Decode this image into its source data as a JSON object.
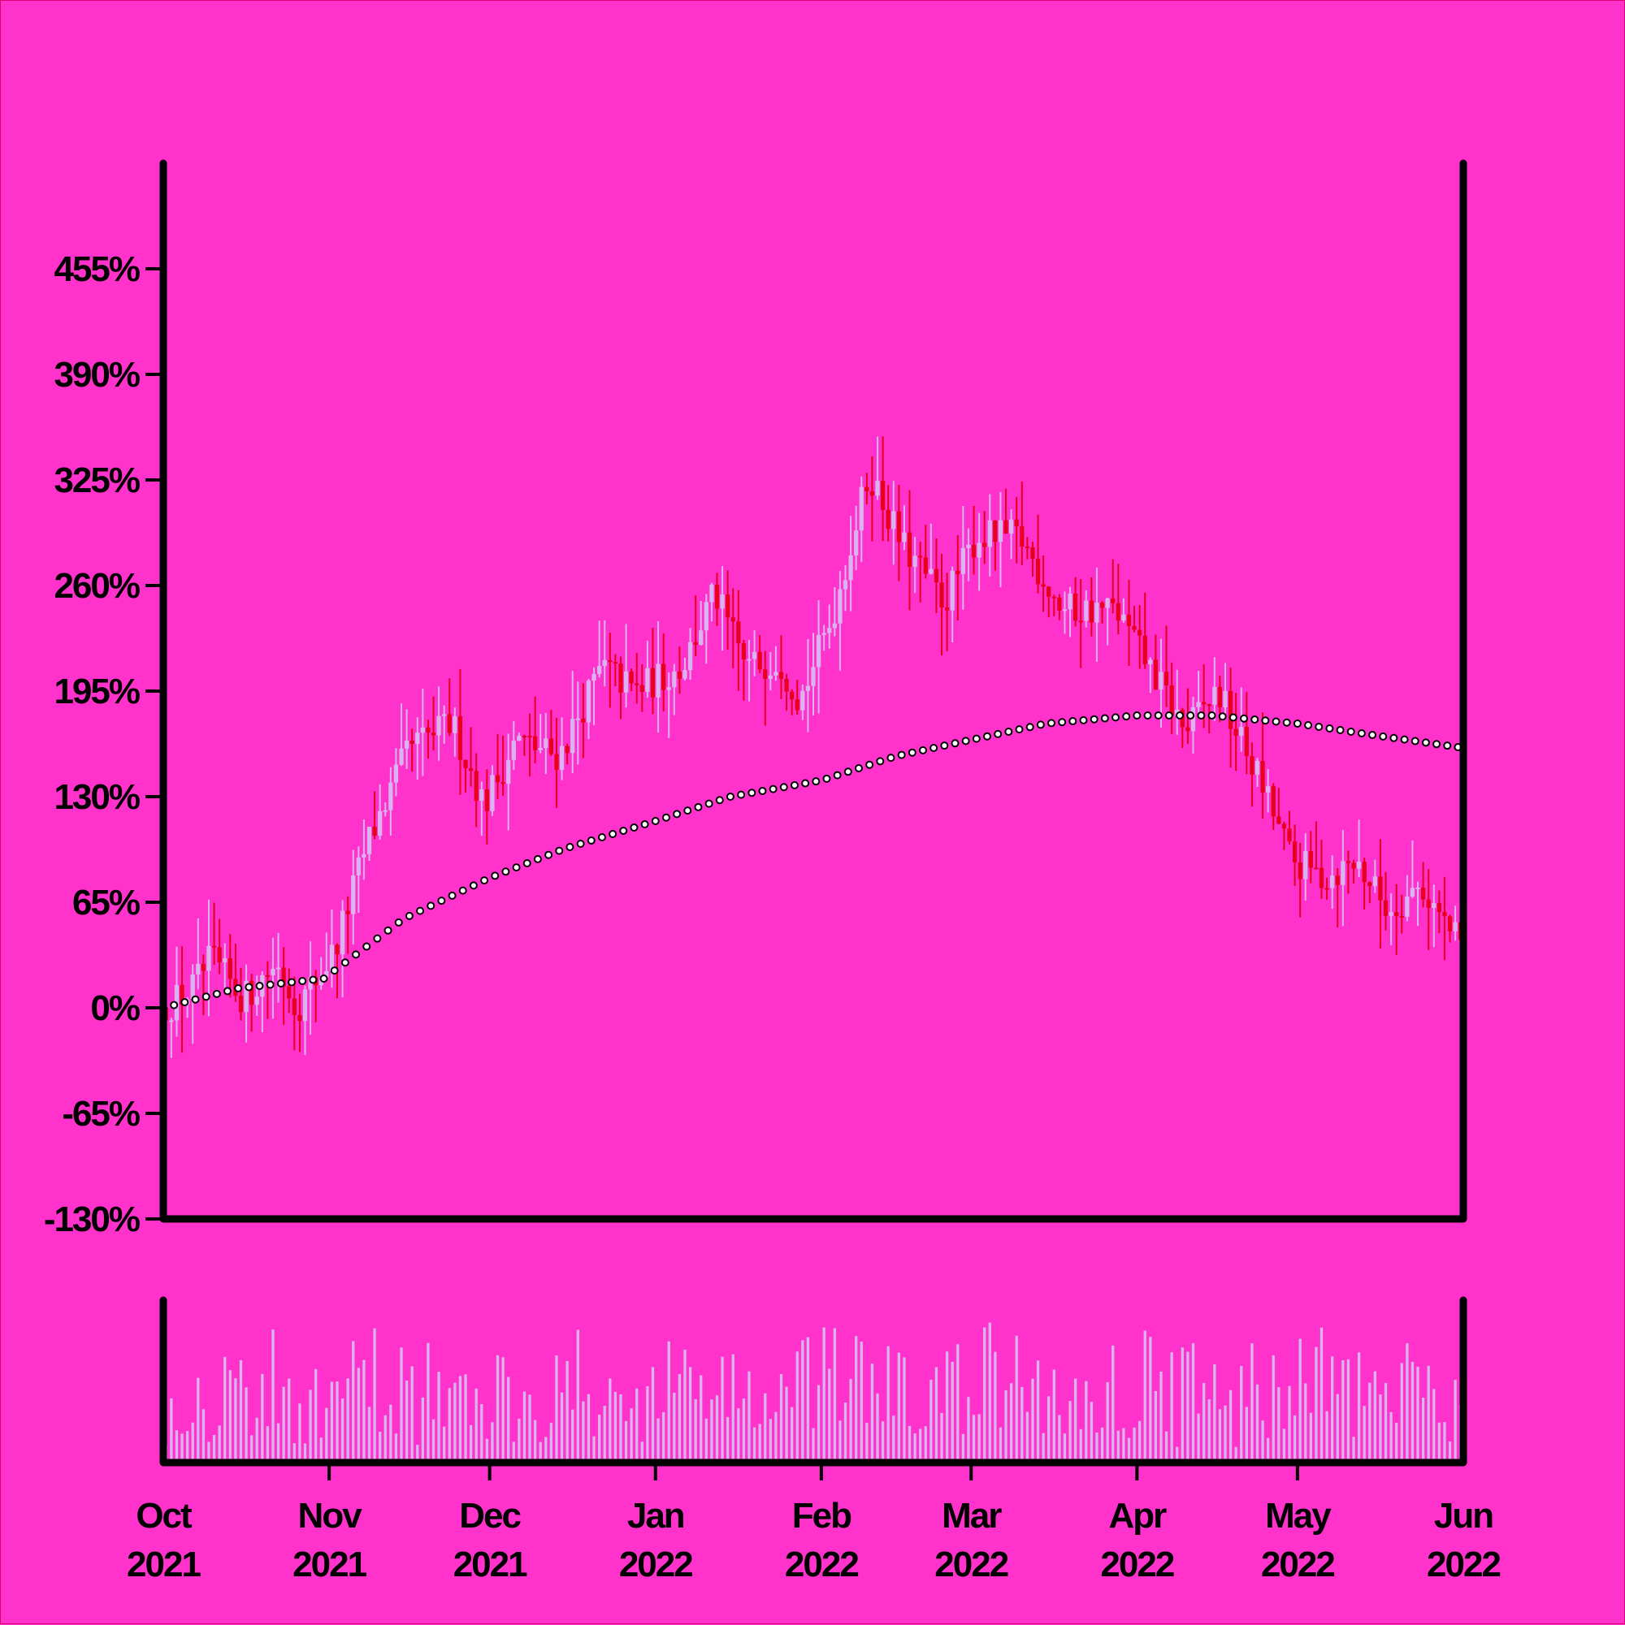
{
  "colors": {
    "background": "#ff33cc",
    "axis": "#000000",
    "up_candle": "#d8b4f0",
    "down_candle": "#e8001c",
    "volume": "#d8b4f0",
    "moving_average_fill": "#ffffff",
    "moving_average_stroke": "#000000"
  },
  "chart_data": {
    "type": "candlestick",
    "y_unit": "percent change",
    "ylim": [
      -130,
      520
    ],
    "y_ticks": [
      -130,
      -65,
      0,
      65,
      130,
      195,
      260,
      325,
      390,
      455
    ],
    "y_tick_labels": [
      "-130%",
      "-65%",
      "0%",
      "65%",
      "130%",
      "195%",
      "260%",
      "325%",
      "390%",
      "455%"
    ],
    "x_range": [
      "2021-10-01",
      "2022-06-01"
    ],
    "x_ticks": [
      "2021-10-01",
      "2021-11-01",
      "2021-12-01",
      "2022-01-01",
      "2022-02-01",
      "2022-03-01",
      "2022-04-01",
      "2022-05-01",
      "2022-06-01"
    ],
    "x_tick_labels": [
      {
        "month": "Oct",
        "year": "2021"
      },
      {
        "month": "Nov",
        "year": "2021"
      },
      {
        "month": "Dec",
        "year": "2021"
      },
      {
        "month": "Jan",
        "year": "2022"
      },
      {
        "month": "Feb",
        "year": "2022"
      },
      {
        "month": "Mar",
        "year": "2022"
      },
      {
        "month": "Apr",
        "year": "2022"
      },
      {
        "month": "May",
        "year": "2022"
      },
      {
        "month": "Jun",
        "year": "2022"
      }
    ],
    "price_series_anchors": [
      {
        "date": "2021-10-01",
        "close": 0
      },
      {
        "date": "2021-10-06",
        "close": 10
      },
      {
        "date": "2021-10-10",
        "close": 30
      },
      {
        "date": "2021-10-16",
        "close": 5
      },
      {
        "date": "2021-10-22",
        "close": 28
      },
      {
        "date": "2021-10-26",
        "close": 0
      },
      {
        "date": "2021-11-02",
        "close": 35
      },
      {
        "date": "2021-11-08",
        "close": 100
      },
      {
        "date": "2021-11-16",
        "close": 160
      },
      {
        "date": "2021-11-24",
        "close": 175
      },
      {
        "date": "2021-11-30",
        "close": 125
      },
      {
        "date": "2021-12-06",
        "close": 165
      },
      {
        "date": "2021-12-14",
        "close": 155
      },
      {
        "date": "2021-12-22",
        "close": 210
      },
      {
        "date": "2021-12-28",
        "close": 195
      },
      {
        "date": "2022-01-06",
        "close": 210
      },
      {
        "date": "2022-01-12",
        "close": 255
      },
      {
        "date": "2022-01-18",
        "close": 210
      },
      {
        "date": "2022-01-24",
        "close": 215
      },
      {
        "date": "2022-01-28",
        "close": 190
      },
      {
        "date": "2022-02-03",
        "close": 240
      },
      {
        "date": "2022-02-10",
        "close": 330
      },
      {
        "date": "2022-02-16",
        "close": 285
      },
      {
        "date": "2022-02-24",
        "close": 250
      },
      {
        "date": "2022-03-02",
        "close": 290
      },
      {
        "date": "2022-03-10",
        "close": 290
      },
      {
        "date": "2022-03-18",
        "close": 245
      },
      {
        "date": "2022-03-28",
        "close": 245
      },
      {
        "date": "2022-04-06",
        "close": 195
      },
      {
        "date": "2022-04-10",
        "close": 170
      },
      {
        "date": "2022-04-16",
        "close": 195
      },
      {
        "date": "2022-04-24",
        "close": 140
      },
      {
        "date": "2022-04-30",
        "close": 90
      },
      {
        "date": "2022-05-06",
        "close": 80
      },
      {
        "date": "2022-05-12",
        "close": 90
      },
      {
        "date": "2022-05-18",
        "close": 60
      },
      {
        "date": "2022-05-24",
        "close": 75
      },
      {
        "date": "2022-05-31",
        "close": 40
      }
    ],
    "moving_average_anchors": [
      {
        "date": "2021-10-01",
        "value": 0
      },
      {
        "date": "2021-10-15",
        "value": 12
      },
      {
        "date": "2021-10-31",
        "value": 18
      },
      {
        "date": "2021-11-15",
        "value": 55
      },
      {
        "date": "2021-12-01",
        "value": 80
      },
      {
        "date": "2021-12-15",
        "value": 98
      },
      {
        "date": "2022-01-01",
        "value": 115
      },
      {
        "date": "2022-01-15",
        "value": 130
      },
      {
        "date": "2022-02-01",
        "value": 140
      },
      {
        "date": "2022-02-15",
        "value": 155
      },
      {
        "date": "2022-03-01",
        "value": 165
      },
      {
        "date": "2022-03-15",
        "value": 175
      },
      {
        "date": "2022-04-01",
        "value": 180
      },
      {
        "date": "2022-04-15",
        "value": 180
      },
      {
        "date": "2022-05-01",
        "value": 175
      },
      {
        "date": "2022-05-15",
        "value": 168
      },
      {
        "date": "2022-06-01",
        "value": 160
      }
    ],
    "volume_note": "relative volume bars under price panel"
  }
}
